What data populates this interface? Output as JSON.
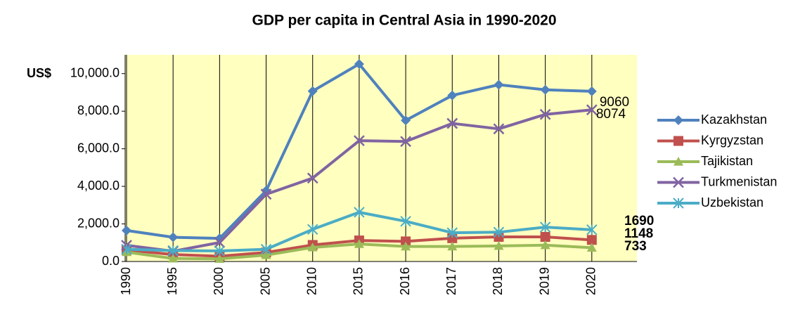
{
  "chart_data": {
    "type": "line",
    "title": "GDP per capita in Central Asia in 1990-2020",
    "y_label": "US$",
    "categories": [
      "1990",
      "1995",
      "2000",
      "2005",
      "2010",
      "2015",
      "2016",
      "2017",
      "2018",
      "2019",
      "2020"
    ],
    "series": [
      {
        "name": "Kazakhstan",
        "color": "#4f81bd",
        "marker": "diamond",
        "values": [
          1650,
          1290,
          1230,
          3770,
          9070,
          10510,
          7510,
          8840,
          9410,
          9140,
          9060
        ]
      },
      {
        "name": "Kyrgyzstan",
        "color": "#c0504d",
        "marker": "square",
        "values": [
          610,
          370,
          280,
          480,
          880,
          1120,
          1070,
          1240,
          1310,
          1310,
          1148
        ]
      },
      {
        "name": "Tajikistan",
        "color": "#9bbb59",
        "marker": "triangle",
        "values": [
          500,
          160,
          140,
          340,
          750,
          930,
          800,
          800,
          830,
          870,
          733
        ]
      },
      {
        "name": "Turkmenistan",
        "color": "#8064a2",
        "marker": "x",
        "values": [
          860,
          550,
          1010,
          3580,
          4440,
          6430,
          6390,
          7350,
          7060,
          7830,
          8074
        ]
      },
      {
        "name": "Uzbekistan",
        "color": "#4bacc6",
        "marker": "star",
        "values": [
          650,
          580,
          560,
          650,
          1710,
          2620,
          2140,
          1530,
          1560,
          1830,
          1690
        ]
      }
    ],
    "ylim": [
      0,
      11000
    ],
    "yticks": [
      {
        "value": 0,
        "label": "0.0"
      },
      {
        "value": 2000,
        "label": "2,000.0"
      },
      {
        "value": 4000,
        "label": "4,000.0"
      },
      {
        "value": 6000,
        "label": "6,000.0"
      },
      {
        "value": 8000,
        "label": "8,000.0"
      },
      {
        "value": 10000,
        "label": "10,000.0"
      }
    ],
    "legend": "right",
    "plot_background": "#ffffc0"
  }
}
